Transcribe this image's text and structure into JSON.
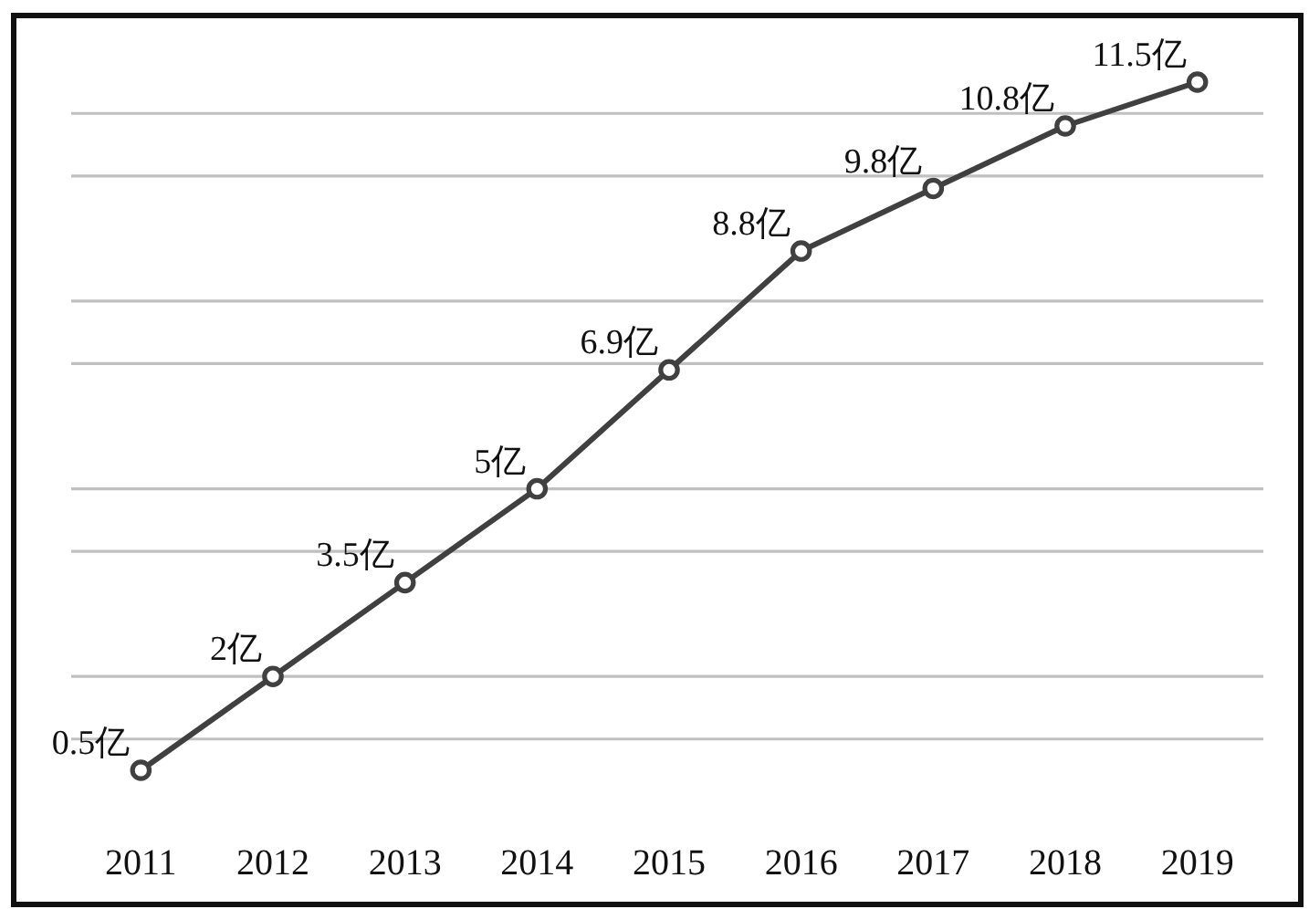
{
  "chart_data": {
    "type": "line",
    "categories": [
      "2011",
      "2012",
      "2013",
      "2014",
      "2015",
      "2016",
      "2017",
      "2018",
      "2019"
    ],
    "values": [
      0.5,
      2,
      3.5,
      5,
      6.9,
      8.8,
      9.8,
      10.8,
      11.5
    ],
    "value_labels": [
      "0.5亿",
      "2亿",
      "3.5亿",
      "5亿",
      "6.9亿",
      "8.8亿",
      "9.8亿",
      "10.8亿",
      "11.5亿"
    ],
    "color": "#404040",
    "yticks": [
      {
        "value": 1,
        "label": null
      },
      {
        "value": 2,
        "label": null
      },
      {
        "value": 4,
        "label": null
      },
      {
        "value": 5,
        "label": null
      },
      {
        "value": 7,
        "label": null
      },
      {
        "value": 8,
        "label": null
      },
      {
        "value": 10,
        "label": null
      },
      {
        "value": 11,
        "label": null
      }
    ],
    "grid": "y",
    "tick_labels": "x",
    "marker": "circle",
    "line_style": "solid"
  }
}
